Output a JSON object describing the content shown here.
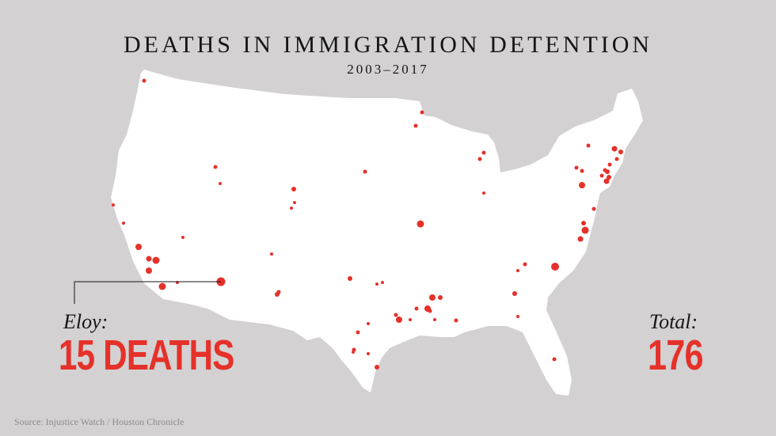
{
  "header": {
    "title": "DEATHS IN IMMIGRATION DETENTION",
    "subtitle": "2003–2017"
  },
  "callouts": {
    "eloy_label": "Eloy:",
    "eloy_value": "15 DEATHS",
    "total_label": "Total:",
    "total_value": "176"
  },
  "source": "Source: Injustice Watch / Houston Chronicle",
  "colors": {
    "background": "#d3d1d2",
    "land": "#ffffff",
    "dots": "#e5312a",
    "text": "#151515"
  }
}
